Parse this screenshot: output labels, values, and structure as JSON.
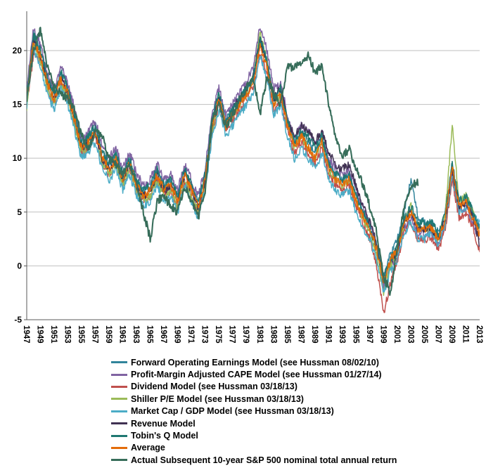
{
  "chart_data": {
    "type": "line",
    "title": "",
    "xlabel": "",
    "ylabel": "",
    "grid": true,
    "legend_position": "bottom",
    "x_range": [
      1947,
      2013
    ],
    "x_tick_labels": [
      "1947",
      "1949",
      "1951",
      "1953",
      "1955",
      "1957",
      "1959",
      "1961",
      "1963",
      "1965",
      "1967",
      "1969",
      "1971",
      "1973",
      "1975",
      "1977",
      "1979",
      "1981",
      "1983",
      "1985",
      "1987",
      "1989",
      "1991",
      "1993",
      "1995",
      "1997",
      "1999",
      "2001",
      "2003",
      "2005",
      "2007",
      "2009",
      "2011",
      "2013"
    ],
    "y_ticks": [
      -5,
      0,
      5,
      10,
      15,
      20
    ],
    "ylim": [
      -5,
      23
    ],
    "series": [
      {
        "name": "Forward Operating Earnings Model (see Hussman 08/02/10)",
        "color": "#31849B",
        "values": [
          16,
          21.5,
          20,
          17.5,
          16,
          18,
          16.5,
          14,
          11.5,
          12,
          13,
          10.5,
          9.5,
          10.5,
          8.5,
          10,
          8,
          7,
          7.5,
          9,
          7.5,
          8,
          6.5,
          9,
          7.5,
          6,
          8.5,
          13.5,
          16,
          13.5,
          14.5,
          15.5,
          16.5,
          17.5,
          21,
          19,
          15.5,
          16.5,
          13.5,
          11.5,
          12.5,
          11.5,
          10.5,
          12,
          9.5,
          8.5,
          8,
          8.5,
          6.5,
          5,
          4,
          2,
          -1,
          1,
          2.5,
          5,
          8,
          4.5,
          4,
          4,
          3,
          5,
          9.5,
          6,
          6.5,
          5,
          3.5
        ]
      },
      {
        "name": "Profit-Margin Adjusted CAPE Model (see Hussman 01/27/14)",
        "color": "#8064A2",
        "values": [
          16.5,
          22,
          20.5,
          18,
          16.5,
          18.5,
          17,
          14.5,
          12,
          12.5,
          13.5,
          11,
          10,
          11,
          9,
          10.5,
          8.5,
          7.5,
          8,
          9.5,
          8,
          8.5,
          7,
          9.5,
          8,
          6.5,
          9,
          14,
          16.5,
          14,
          15,
          16,
          17,
          18.5,
          22.3,
          20,
          16.5,
          17,
          14,
          12,
          13,
          12.5,
          11.5,
          12.5,
          10,
          9,
          8.5,
          9,
          7,
          5.5,
          4,
          2,
          -2,
          0,
          1,
          3.5,
          4.5,
          3,
          3,
          3,
          2,
          4,
          8.5,
          5,
          5.5,
          4,
          2.3
        ]
      },
      {
        "name": "Dividend Model (see Hussman 03/18/13)",
        "color": "#C0504D",
        "values": [
          15,
          19.5,
          19,
          16.5,
          15,
          17,
          15.5,
          13,
          10.5,
          11,
          12,
          9.5,
          8.5,
          9.5,
          7.5,
          9,
          7,
          6,
          6.5,
          8,
          6.5,
          7,
          5.5,
          8,
          6.5,
          5,
          7.5,
          12.5,
          15,
          12.5,
          13.5,
          14.5,
          15.5,
          16.5,
          19.5,
          18,
          14.5,
          15.5,
          12.5,
          10.5,
          11.5,
          10.5,
          9.5,
          11,
          8.5,
          7.5,
          7,
          7.5,
          5.5,
          4,
          2.5,
          0,
          -4.5,
          -1.5,
          0.5,
          3,
          4,
          2.5,
          2.5,
          2.5,
          1.5,
          3.5,
          8,
          4.5,
          5,
          3.5,
          1.5
        ]
      },
      {
        "name": "Shiller P/E Model (see Hussman 03/18/13)",
        "color": "#9BBB59",
        "values": [
          14.5,
          20.5,
          19,
          16.5,
          15,
          17,
          15.5,
          13,
          10.5,
          11,
          12.5,
          9.5,
          8.5,
          9.5,
          7.5,
          9,
          7,
          6,
          6.5,
          8,
          6.5,
          7,
          5.5,
          8,
          6.5,
          5,
          7.5,
          12.5,
          15.5,
          13,
          14,
          15,
          16,
          17.5,
          21.5,
          19,
          15,
          16,
          13,
          11,
          12,
          11,
          10,
          11.5,
          9,
          8,
          7.5,
          8,
          6,
          4.5,
          3,
          1,
          -2.5,
          0,
          1.5,
          4,
          5.5,
          3.5,
          3.5,
          3.5,
          2.5,
          5,
          13,
          6,
          6.5,
          5,
          3
        ]
      },
      {
        "name": "Market Cap / GDP Model (see Hussman 03/18/13)",
        "color": "#4BACC6",
        "values": [
          15,
          20,
          18.5,
          16,
          14.5,
          16.5,
          15,
          12.5,
          10,
          10.5,
          11.5,
          9,
          8,
          9,
          7,
          8.5,
          6.5,
          5.5,
          6,
          7.5,
          6,
          6.5,
          5,
          7.5,
          6,
          4.5,
          7,
          12,
          14.5,
          12,
          13,
          14,
          15,
          16,
          19.5,
          17.5,
          14,
          15,
          12,
          10,
          11,
          10,
          9,
          10.5,
          8,
          7,
          6.5,
          7,
          5,
          3.5,
          2.5,
          0.5,
          -2.5,
          -0.5,
          0.5,
          3,
          4,
          2.5,
          2.5,
          3,
          2,
          4,
          8.5,
          5,
          5.5,
          4.5,
          4
        ]
      },
      {
        "name": "Revenue Model",
        "color": "#403152",
        "values": [
          15.5,
          21,
          19.5,
          17,
          15.5,
          17.5,
          16,
          13.5,
          11,
          11.5,
          12.5,
          10,
          9,
          10,
          8,
          9.5,
          7.5,
          6.5,
          7,
          8.5,
          7,
          7.5,
          6,
          8.5,
          7,
          5.5,
          8,
          13,
          15.5,
          13,
          14.5,
          15.5,
          16.5,
          17.5,
          21,
          19,
          15.5,
          16.5,
          13.5,
          12,
          13,
          12.5,
          11.5,
          12.5,
          10.5,
          9.5,
          9,
          9.5,
          7.5,
          5.5,
          4,
          2,
          -1.5,
          0.5,
          1.5,
          4,
          5,
          3.5,
          3.5,
          3.5,
          2.5,
          4.5,
          9,
          5.5,
          6,
          4.5,
          2
        ]
      },
      {
        "name": "Tobin's Q Model",
        "color": "#1F7872",
        "values": [
          16,
          21.5,
          20,
          17.5,
          16,
          18,
          16.5,
          14,
          11.5,
          12,
          13,
          10.5,
          9.5,
          10.5,
          8.5,
          10,
          8,
          7,
          7.5,
          9,
          7.5,
          8,
          6.5,
          9,
          7.5,
          6,
          8.5,
          13.5,
          16,
          13.5,
          14.5,
          15.5,
          16.5,
          17.5,
          21,
          19,
          15.5,
          16.5,
          13.5,
          11.5,
          12.5,
          12,
          11,
          12,
          9.5,
          8.5,
          8,
          8.5,
          6.5,
          5,
          3.5,
          1.5,
          -1,
          0.5,
          2,
          4.5,
          5.5,
          4,
          4,
          4,
          3,
          5,
          9.5,
          6,
          6.5,
          5,
          3.5
        ]
      },
      {
        "name": "Average",
        "color": "#E36C0A",
        "values": [
          15.5,
          21,
          19.5,
          17,
          15.5,
          17.5,
          16,
          13.5,
          11,
          11.5,
          12.5,
          10,
          9,
          10,
          8,
          9.5,
          7.5,
          6.5,
          7,
          8.5,
          7,
          7.5,
          6,
          8.5,
          7,
          5.5,
          8,
          13,
          15.5,
          13,
          14,
          15,
          16,
          17,
          20.5,
          18.5,
          15,
          16,
          13,
          11,
          12,
          11,
          10,
          11.5,
          9,
          8,
          7.5,
          8,
          6,
          4.5,
          3.5,
          1.5,
          -1.5,
          0.5,
          1.5,
          4,
          5,
          3.5,
          3.5,
          3.5,
          2.5,
          4.5,
          9,
          5.5,
          6,
          4.5,
          3
        ]
      },
      {
        "name": "Actual Subsequent 10-year S&P 500 nominal total annual return",
        "color": "#376D5A",
        "values": [
          15.5,
          20,
          22,
          18.5,
          16.5,
          16,
          15.5,
          14.5,
          12,
          11,
          12.5,
          12,
          10,
          9.5,
          8.5,
          9.5,
          7.5,
          5,
          2.5,
          6,
          6.5,
          5.5,
          5,
          7.5,
          6,
          4.5,
          7,
          13.5,
          15,
          13,
          14,
          15.5,
          16.5,
          17.5,
          14,
          17.5,
          16,
          15,
          18.5,
          18.5,
          19,
          19.5,
          18,
          18.5,
          15,
          12,
          10,
          11,
          9,
          7.5,
          5.5,
          3,
          -1,
          -2.5,
          1.5,
          5.5,
          7.5,
          7.8,
          null,
          null,
          null,
          null,
          null,
          null,
          null,
          null,
          null
        ]
      }
    ]
  }
}
